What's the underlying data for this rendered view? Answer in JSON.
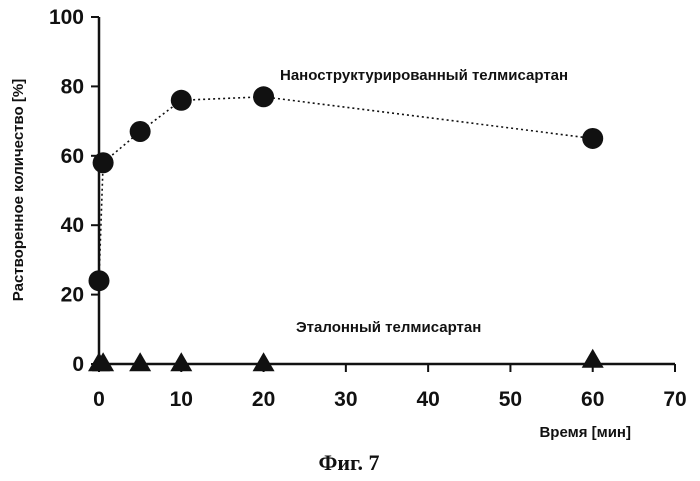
{
  "chart_data": {
    "type": "scatter",
    "xlabel": "Время [мин]",
    "ylabel": "Растворенное количество [%]",
    "xlim": [
      0,
      70
    ],
    "ylim": [
      0,
      100
    ],
    "x_ticks": [
      0,
      10,
      20,
      30,
      40,
      50,
      60,
      70
    ],
    "y_ticks": [
      0,
      20,
      40,
      60,
      80,
      100
    ],
    "grid": false,
    "series": [
      {
        "name": "Наноструктурированный телмисартан",
        "marker": "circle",
        "line": "dotted",
        "x": [
          0,
          0.5,
          5,
          10,
          20,
          60
        ],
        "y": [
          24,
          58,
          67,
          76,
          77,
          65
        ]
      },
      {
        "name": "Эталонный телмисартан",
        "marker": "triangle",
        "line": "none",
        "x": [
          0,
          0.5,
          5,
          10,
          20,
          60
        ],
        "y": [
          0,
          0,
          0,
          0,
          0,
          1
        ]
      }
    ]
  },
  "caption": "Фиг. 7",
  "colors": {
    "ink": "#111111"
  }
}
